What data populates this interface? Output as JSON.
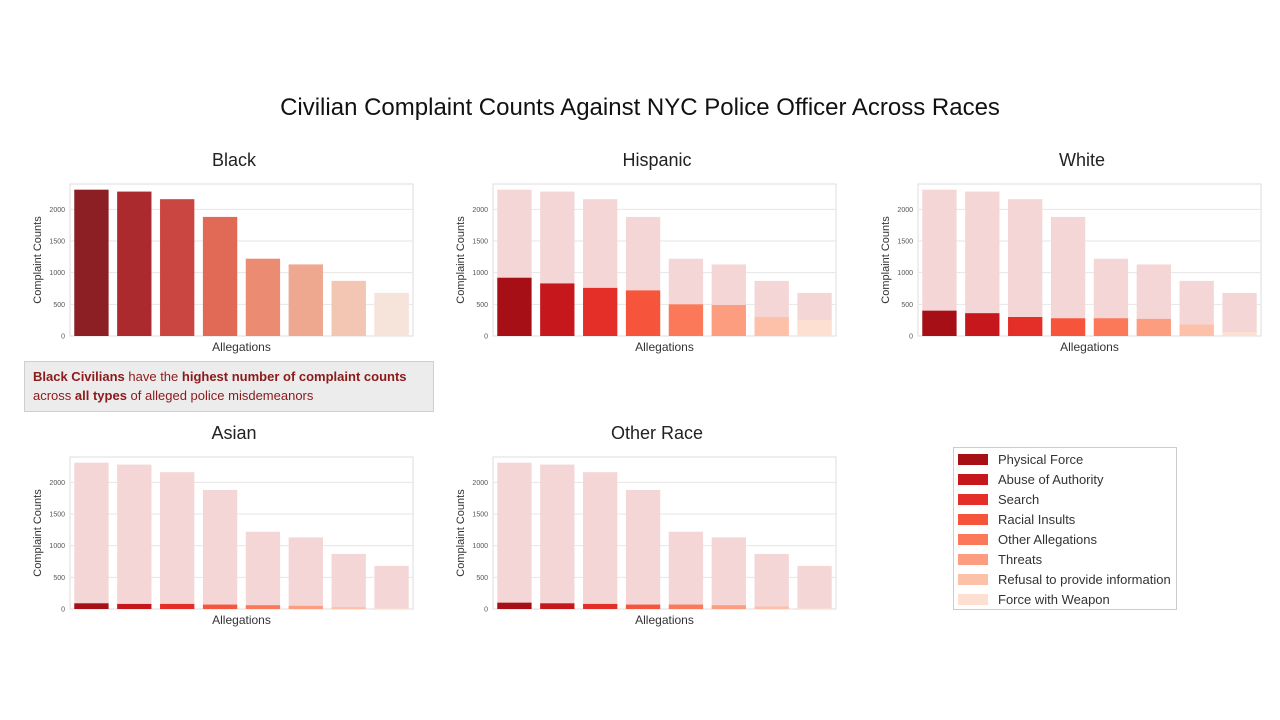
{
  "title": "Civilian Complaint Counts Against NYC Police Officer Across Races",
  "annotation": {
    "parts": [
      {
        "text": "Black Civilians",
        "bold": true
      },
      {
        "text": " have the ",
        "bold": false
      },
      {
        "text": "highest number of complaint counts",
        "bold": true
      },
      {
        "text": " across ",
        "bold": false
      },
      {
        "text": "all types",
        "bold": true
      },
      {
        "text": " of alleged police misdemeanors",
        "bold": false
      }
    ]
  },
  "legend": {
    "items": [
      {
        "label": "Physical Force",
        "color": "#a50f15"
      },
      {
        "label": "Abuse of Authority",
        "color": "#c5171c"
      },
      {
        "label": "Search",
        "color": "#e32f27"
      },
      {
        "label": "Racial Insults",
        "color": "#f6553c"
      },
      {
        "label": "Other Allegations",
        "color": "#fb7858"
      },
      {
        "label": "Threats",
        "color": "#fc9d7f"
      },
      {
        "label": "Refusal to provide information",
        "color": "#fdc1a9"
      },
      {
        "label": "Force with Weapon",
        "color": "#fee0d2"
      }
    ]
  },
  "chart_data": [
    {
      "type": "bar",
      "title": "Black",
      "xlabel": "Allegations",
      "ylabel": "Complaint Counts",
      "ylim": [
        0,
        2400
      ],
      "yticks": [
        0,
        500,
        1000,
        1500,
        2000
      ],
      "total_values": [
        2310,
        2280,
        2160,
        1880,
        1220,
        1130,
        870,
        680
      ],
      "values": [
        2310,
        2280,
        2160,
        1880,
        1220,
        1130,
        870,
        680
      ],
      "colors": [
        "#8b1f24",
        "#ab2a2e",
        "#ca4641",
        "#e06a55",
        "#ea8b72",
        "#eea88f",
        "#f3c5b3",
        "#f6e3da"
      ]
    },
    {
      "type": "bar",
      "title": "Hispanic",
      "xlabel": "Allegations",
      "ylabel": "Complaint Counts",
      "ylim": [
        0,
        2400
      ],
      "yticks": [
        0,
        500,
        1000,
        1500,
        2000
      ],
      "total_values": [
        2310,
        2280,
        2160,
        1880,
        1220,
        1130,
        870,
        680
      ],
      "values": [
        920,
        830,
        760,
        720,
        500,
        490,
        300,
        250
      ],
      "colors": [
        "#a50f15",
        "#c5171c",
        "#e32f27",
        "#f6553c",
        "#fb7858",
        "#fc9d7f",
        "#fdc1a9",
        "#fee0d2"
      ]
    },
    {
      "type": "bar",
      "title": "White",
      "xlabel": "Allegations",
      "ylabel": "Complaint Counts",
      "ylim": [
        0,
        2400
      ],
      "yticks": [
        0,
        500,
        1000,
        1500,
        2000
      ],
      "total_values": [
        2310,
        2280,
        2160,
        1880,
        1220,
        1130,
        870,
        680
      ],
      "values": [
        400,
        360,
        300,
        280,
        280,
        270,
        180,
        60
      ],
      "colors": [
        "#a50f15",
        "#c5171c",
        "#e32f27",
        "#f6553c",
        "#fb7858",
        "#fc9d7f",
        "#fdc1a9",
        "#fee0d2"
      ]
    },
    {
      "type": "bar",
      "title": "Asian",
      "xlabel": "Allegations",
      "ylabel": "Complaint Counts",
      "ylim": [
        0,
        2400
      ],
      "yticks": [
        0,
        500,
        1000,
        1500,
        2000
      ],
      "total_values": [
        2310,
        2280,
        2160,
        1880,
        1220,
        1130,
        870,
        680
      ],
      "values": [
        90,
        80,
        80,
        70,
        60,
        50,
        30,
        10
      ],
      "colors": [
        "#a50f15",
        "#c5171c",
        "#e32f27",
        "#f6553c",
        "#fb7858",
        "#fc9d7f",
        "#fdc1a9",
        "#fee0d2"
      ]
    },
    {
      "type": "bar",
      "title": "Other Race",
      "xlabel": "Allegations",
      "ylabel": "Complaint Counts",
      "ylim": [
        0,
        2400
      ],
      "yticks": [
        0,
        500,
        1000,
        1500,
        2000
      ],
      "total_values": [
        2310,
        2280,
        2160,
        1880,
        1220,
        1130,
        870,
        680
      ],
      "values": [
        100,
        90,
        80,
        70,
        70,
        60,
        40,
        10
      ],
      "colors": [
        "#a50f15",
        "#c5171c",
        "#e32f27",
        "#f6553c",
        "#fb7858",
        "#fc9d7f",
        "#fdc1a9",
        "#fee0d2"
      ]
    }
  ],
  "colors": {
    "background_bar": "#f4d6d6",
    "grid": "#e6e6e6",
    "axis_border": "#dddddd",
    "annotation_text": "#8b1a1a"
  }
}
